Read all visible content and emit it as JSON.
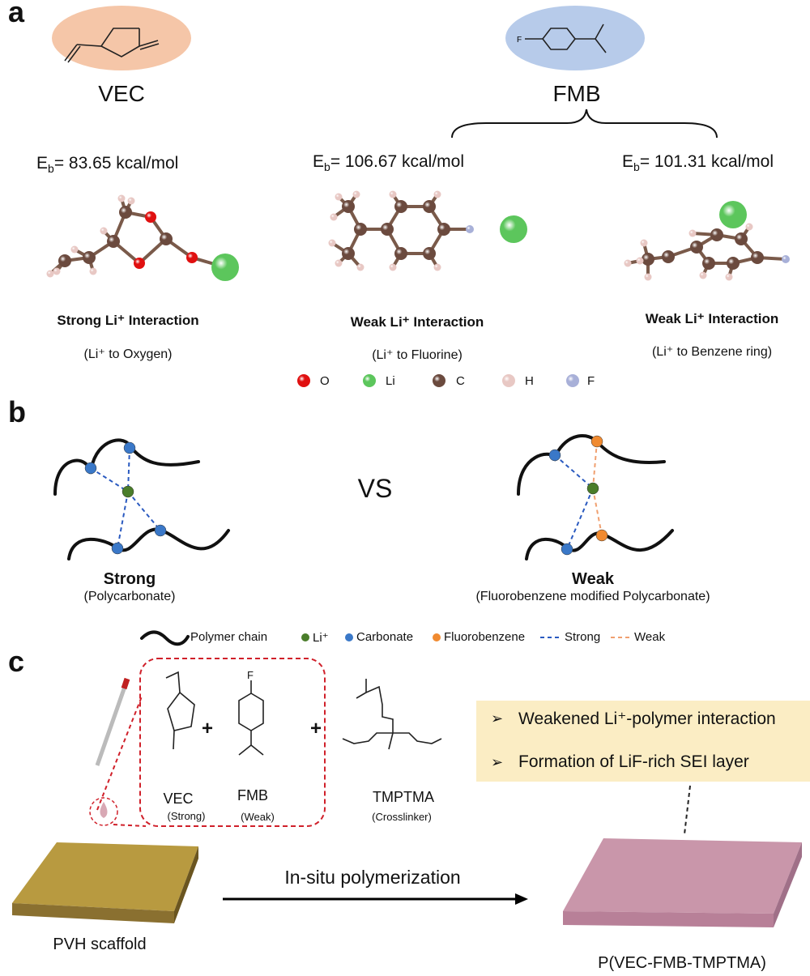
{
  "panel_a": {
    "label": "a",
    "vec": {
      "name": "VEC",
      "eb": "83.65 kcal/mol",
      "title": "Strong Li⁺ Interaction",
      "subtitle": "(Li⁺ to Oxygen)",
      "ellipse_color": "#f5c6a8"
    },
    "fmb": {
      "name": "FMB",
      "ellipse_color": "#b7cbea",
      "fluorine": {
        "eb": "106.67 kcal/mol",
        "title": "Weak Li⁺ Interaction",
        "subtitle": "(Li⁺ to Fluorine)"
      },
      "benzene": {
        "eb": "101.31 kcal/mol",
        "title": "Weak Li⁺ Interaction",
        "subtitle": "(Li⁺ to Benzene ring)"
      }
    },
    "eb_prefix": "E",
    "eb_sub": "b",
    "eb_eq": "= ",
    "legend": [
      {
        "label": "O",
        "color": "#e01010"
      },
      {
        "label": "Li",
        "color": "#5cc65c"
      },
      {
        "label": "C",
        "color": "#6b4a3e"
      },
      {
        "label": "H",
        "color": "#e8c8c4"
      },
      {
        "label": "F",
        "color": "#a8b0d8"
      }
    ]
  },
  "panel_b": {
    "label": "b",
    "vs": "VS",
    "strong": {
      "title": "Strong",
      "subtitle": "(Polycarbonate)"
    },
    "weak": {
      "title": "Weak",
      "subtitle": "(Fluorobenzene modified Polycarbonate)"
    },
    "legend": [
      {
        "label": "Polymer chain",
        "type": "chain"
      },
      {
        "label": "Li⁺",
        "color": "#4a7d2a"
      },
      {
        "label": "Carbonate",
        "color": "#3a78c8"
      },
      {
        "label": "Fluorobenzene",
        "color": "#f08a30"
      },
      {
        "label": "Strong",
        "type": "dash",
        "color": "#2a5ac0"
      },
      {
        "label": "Weak",
        "type": "dash",
        "color": "#f0a070"
      }
    ]
  },
  "panel_c": {
    "label": "c",
    "monomers": [
      {
        "name": "VEC",
        "role": "(Strong)"
      },
      {
        "name": "FMB",
        "role": "(Weak)"
      },
      {
        "name": "TMPTMA",
        "role": "(Crosslinker)"
      }
    ],
    "fmb_atom": "F",
    "plus": "+",
    "benefits": [
      "Weakened Li⁺-polymer interaction",
      "Formation of LiF-rich SEI layer"
    ],
    "bullet": "➢",
    "arrow_label": "In-situ polymerization",
    "scaffold": "PVH scaffold",
    "product": "P(VEC-FMB-TMPTMA)",
    "colors": {
      "box_dash": "#d0202a",
      "highlight": "#fbedc4",
      "scaffold": "#b89a40",
      "product": "#c996aa"
    }
  }
}
